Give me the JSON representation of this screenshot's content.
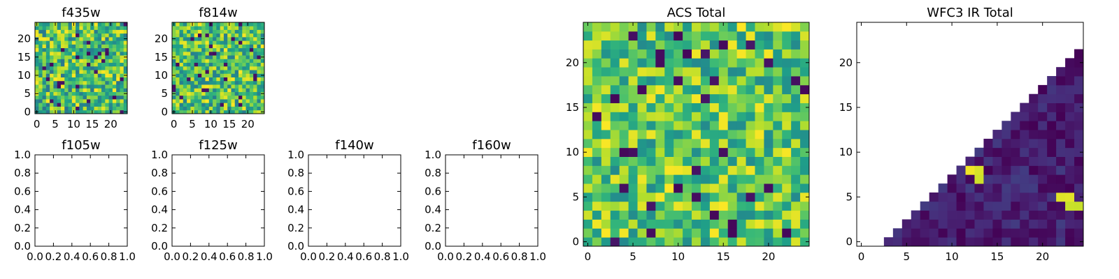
{
  "chart_data": [
    {
      "id": "f435w",
      "type": "heatmap",
      "title": "f435w",
      "grid_size": 25,
      "xlim": [
        -0.5,
        24.5
      ],
      "ylim": [
        -0.5,
        24.5
      ],
      "xticks": [
        0,
        5,
        10,
        15,
        20
      ],
      "yticks": [
        0,
        5,
        10,
        15,
        20
      ],
      "x_tick_labels": [
        "0",
        "5",
        "10",
        "15",
        "20"
      ],
      "y_tick_labels": [
        "0",
        "5",
        "10",
        "15",
        "20"
      ],
      "colormap": "viridis",
      "fill": "uniform_noise",
      "seed": 11,
      "value_range": [
        0.35,
        1.0
      ]
    },
    {
      "id": "f814w",
      "type": "heatmap",
      "title": "f814w",
      "grid_size": 25,
      "xlim": [
        -0.5,
        24.5
      ],
      "ylim": [
        -0.5,
        24.5
      ],
      "xticks": [
        0,
        5,
        10,
        15,
        20
      ],
      "yticks": [
        0,
        5,
        10,
        15,
        20
      ],
      "x_tick_labels": [
        "0",
        "5",
        "10",
        "15",
        "20"
      ],
      "y_tick_labels": [
        "0",
        "5",
        "10",
        "15",
        "20"
      ],
      "colormap": "viridis",
      "fill": "uniform_noise",
      "seed": 23,
      "value_range": [
        0.4,
        1.0
      ]
    },
    {
      "id": "f105w",
      "type": "empty",
      "title": "f105w",
      "xlim": [
        0,
        1
      ],
      "ylim": [
        0,
        1
      ],
      "x_tick_labels": [
        "0.0",
        "0.2",
        "0.4",
        "0.6",
        "0.8",
        "1.0"
      ],
      "y_tick_labels": [
        "0.0",
        "0.2",
        "0.4",
        "0.6",
        "0.8",
        "1.0"
      ]
    },
    {
      "id": "f125w",
      "type": "empty",
      "title": "f125w",
      "xlim": [
        0,
        1
      ],
      "ylim": [
        0,
        1
      ],
      "x_tick_labels": [
        "0.0",
        "0.2",
        "0.4",
        "0.6",
        "0.8",
        "1.0"
      ],
      "y_tick_labels": [
        "0.0",
        "0.2",
        "0.4",
        "0.6",
        "0.8",
        "1.0"
      ]
    },
    {
      "id": "f140w",
      "type": "empty",
      "title": "f140w",
      "xlim": [
        0,
        1
      ],
      "ylim": [
        0,
        1
      ],
      "x_tick_labels": [
        "0.0",
        "0.2",
        "0.4",
        "0.6",
        "0.8",
        "1.0"
      ],
      "y_tick_labels": [
        "0.0",
        "0.2",
        "0.4",
        "0.6",
        "0.8",
        "1.0"
      ]
    },
    {
      "id": "f160w",
      "type": "empty",
      "title": "f160w",
      "xlim": [
        0,
        1
      ],
      "ylim": [
        0,
        1
      ],
      "x_tick_labels": [
        "0.0",
        "0.2",
        "0.4",
        "0.6",
        "0.8",
        "1.0"
      ],
      "y_tick_labels": [
        "0.0",
        "0.2",
        "0.4",
        "0.6",
        "0.8",
        "1.0"
      ]
    },
    {
      "id": "acs_total",
      "type": "heatmap",
      "title": "ACS Total",
      "grid_size": 25,
      "xlim": [
        -0.5,
        24.5
      ],
      "ylim": [
        -0.5,
        24.5
      ],
      "xticks": [
        0,
        5,
        10,
        15,
        20
      ],
      "yticks": [
        0,
        5,
        10,
        15,
        20
      ],
      "x_tick_labels": [
        "0",
        "5",
        "10",
        "15",
        "20"
      ],
      "y_tick_labels": [
        "0",
        "5",
        "10",
        "15",
        "20"
      ],
      "colormap": "viridis",
      "fill": "uniform_noise",
      "seed": 37,
      "value_range": [
        0.45,
        1.0
      ],
      "dark_cells": [
        [
          10,
          23
        ],
        [
          11,
          21
        ],
        [
          24,
          17
        ],
        [
          3,
          16
        ],
        [
          4,
          10
        ],
        [
          10,
          6
        ],
        [
          14,
          3
        ],
        [
          16,
          2
        ],
        [
          22,
          1
        ]
      ]
    },
    {
      "id": "wfc3_ir_total",
      "type": "heatmap",
      "title": "WFC3 IR Total",
      "grid_size": 25,
      "xlim": [
        -0.5,
        24.5
      ],
      "ylim": [
        -0.5,
        24.5
      ],
      "xticks": [
        0,
        5,
        10,
        15,
        20
      ],
      "yticks": [
        0,
        5,
        10,
        15,
        20
      ],
      "x_tick_labels": [
        "0",
        "5",
        "10",
        "15",
        "20"
      ],
      "y_tick_labels": [
        "0",
        "5",
        "10",
        "15",
        "20"
      ],
      "colormap": "viridis",
      "fill": "lower_right_triangle",
      "seed": 53,
      "value_range": [
        0.0,
        0.18
      ],
      "masked": "cells above the diagonal (blank/white)",
      "bright_cells": [
        [
          12,
          8
        ],
        [
          13,
          8
        ],
        [
          13,
          7
        ],
        [
          22,
          5
        ],
        [
          23,
          5
        ],
        [
          23,
          4
        ],
        [
          24,
          4
        ]
      ]
    }
  ]
}
